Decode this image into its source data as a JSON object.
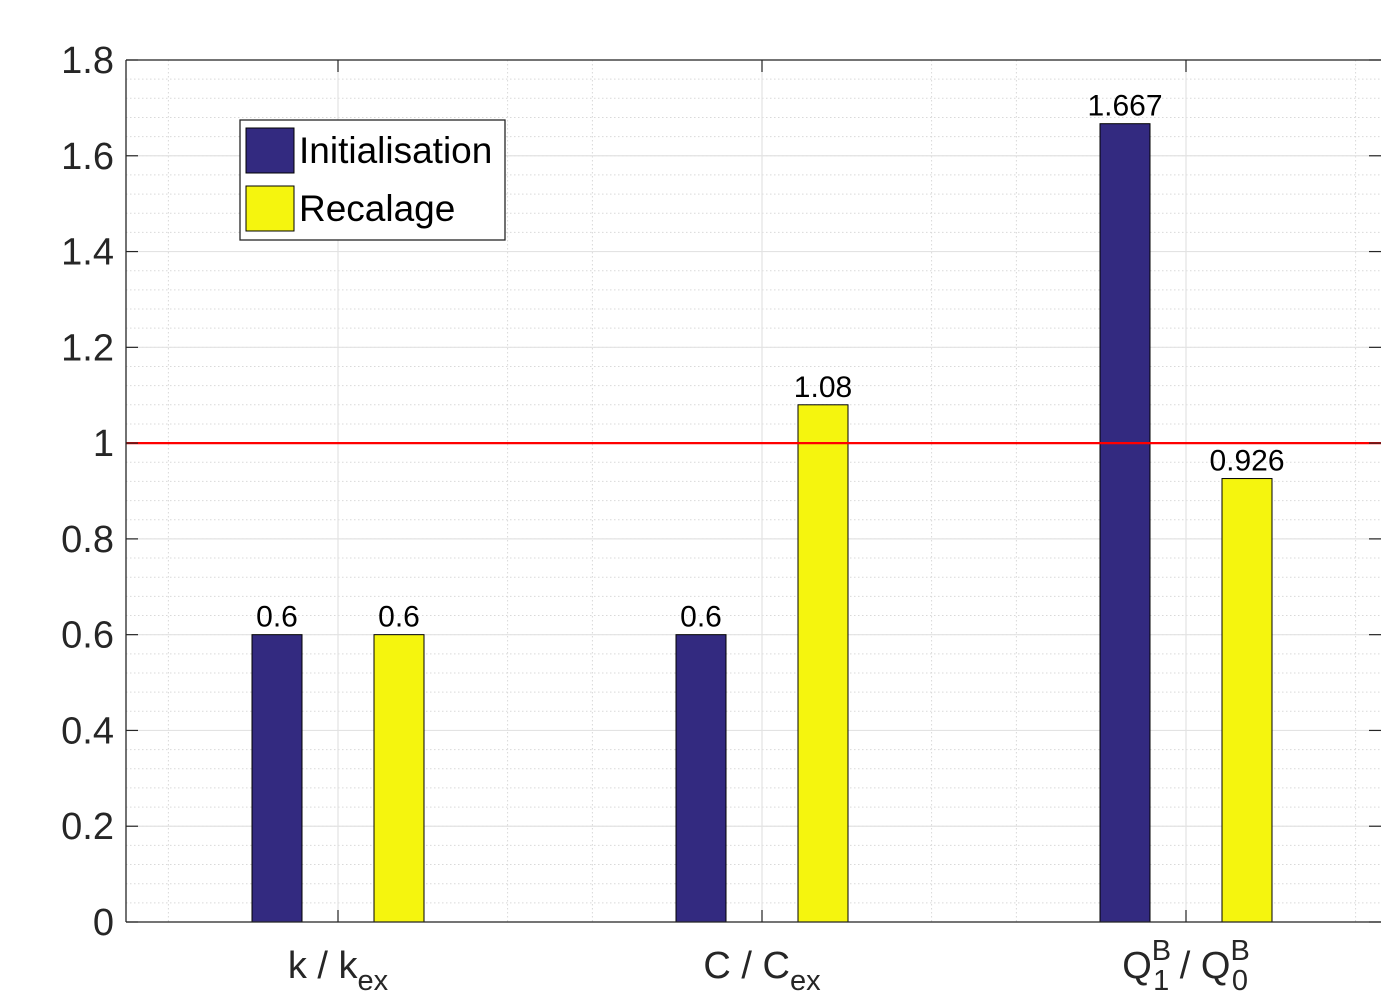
{
  "chart_data": {
    "type": "bar",
    "categories": [
      {
        "main": "k / k",
        "sub": "ex",
        "sup": ""
      },
      {
        "main": "C / C",
        "sub": "ex",
        "sup": ""
      },
      {
        "main": "Q",
        "sub": "1",
        "sup": "B",
        "main2": " / Q",
        "sub2": "0",
        "sup2": "B"
      }
    ],
    "series": [
      {
        "name": "Initialisation",
        "color": "#332a80",
        "values": [
          0.6,
          0.6,
          1.667
        ],
        "labels": [
          "0.6",
          "0.6",
          "1.667"
        ]
      },
      {
        "name": "Recalage",
        "color": "#f5f50e",
        "values": [
          0.6,
          1.08,
          0.926
        ],
        "labels": [
          "0.6",
          "1.08",
          "0.926"
        ]
      }
    ],
    "ylim": [
      0,
      1.8
    ],
    "yticks": [
      0,
      0.2,
      0.4,
      0.6,
      0.8,
      1,
      1.2,
      1.4,
      1.6,
      1.8
    ],
    "ytick_labels": [
      "0",
      "0.2",
      "0.4",
      "0.6",
      "0.8",
      "1",
      "1.2",
      "1.4",
      "1.6",
      "1.8"
    ],
    "reference_line": {
      "y": 1,
      "color": "#ff0000"
    },
    "grid": true,
    "minor_grid": true,
    "legend": {
      "position": "top-left"
    },
    "title": "",
    "xlabel": "",
    "ylabel": ""
  }
}
